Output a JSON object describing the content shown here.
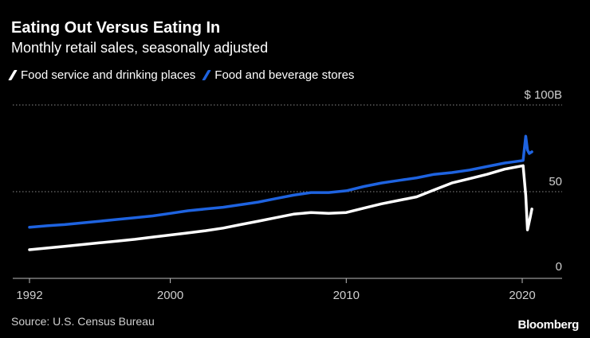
{
  "chart_data": {
    "type": "line",
    "title": "Eating Out Versus Eating In",
    "subtitle": "Monthly retail sales, seasonally adjusted",
    "y_unit_label": "$ 100B",
    "ylim": [
      0,
      100
    ],
    "xlim": [
      1991.5,
      2022
    ],
    "y_ticks": [
      {
        "value": 100,
        "label": "$ 100B"
      },
      {
        "value": 50,
        "label": "50"
      },
      {
        "value": 0,
        "label": "0"
      }
    ],
    "x_ticks": [
      {
        "value": 1992,
        "label": "1992"
      },
      {
        "value": 2000,
        "label": "2000"
      },
      {
        "value": 2010,
        "label": "2010"
      },
      {
        "value": 2020,
        "label": "2020"
      }
    ],
    "series": [
      {
        "name": "Food service and drinking places",
        "color": "#ffffff",
        "points": [
          [
            1992,
            16.5
          ],
          [
            1993,
            17.5
          ],
          [
            1994,
            18.5
          ],
          [
            1995,
            19.5
          ],
          [
            1996,
            20.5
          ],
          [
            1997,
            21.5
          ],
          [
            1998,
            22.5
          ],
          [
            1999,
            23.8
          ],
          [
            2000,
            25
          ],
          [
            2001,
            26.2
          ],
          [
            2002,
            27.5
          ],
          [
            2003,
            29
          ],
          [
            2004,
            31
          ],
          [
            2005,
            33
          ],
          [
            2006,
            35
          ],
          [
            2007,
            37
          ],
          [
            2008,
            38
          ],
          [
            2009,
            37.5
          ],
          [
            2010,
            38
          ],
          [
            2011,
            40.5
          ],
          [
            2012,
            43
          ],
          [
            2013,
            45
          ],
          [
            2014,
            47
          ],
          [
            2015,
            51
          ],
          [
            2016,
            55
          ],
          [
            2017,
            57.5
          ],
          [
            2018,
            60
          ],
          [
            2019,
            63
          ],
          [
            2020.05,
            65
          ],
          [
            2020.2,
            48
          ],
          [
            2020.3,
            28
          ],
          [
            2020.45,
            35
          ],
          [
            2020.55,
            40
          ]
        ]
      },
      {
        "name": "Food and beverage stores",
        "color": "#1e63e0",
        "points": [
          [
            1992,
            29.5
          ],
          [
            1993,
            30.3
          ],
          [
            1994,
            31
          ],
          [
            1995,
            32
          ],
          [
            1996,
            33
          ],
          [
            1997,
            34
          ],
          [
            1998,
            35
          ],
          [
            1999,
            36
          ],
          [
            2000,
            37.5
          ],
          [
            2001,
            39
          ],
          [
            2002,
            40
          ],
          [
            2003,
            41
          ],
          [
            2004,
            42.5
          ],
          [
            2005,
            44
          ],
          [
            2006,
            46
          ],
          [
            2007,
            48
          ],
          [
            2008,
            49.5
          ],
          [
            2009,
            49.5
          ],
          [
            2010,
            50.5
          ],
          [
            2011,
            53
          ],
          [
            2012,
            55
          ],
          [
            2013,
            56.5
          ],
          [
            2014,
            58
          ],
          [
            2015,
            60
          ],
          [
            2016,
            61
          ],
          [
            2017,
            62.5
          ],
          [
            2018,
            64.5
          ],
          [
            2019,
            66.5
          ],
          [
            2020.05,
            68
          ],
          [
            2020.2,
            82
          ],
          [
            2020.3,
            74
          ],
          [
            2020.4,
            72
          ],
          [
            2020.55,
            73
          ]
        ]
      }
    ],
    "source": "Source: U.S. Census Bureau"
  },
  "brand": "Bloomberg"
}
